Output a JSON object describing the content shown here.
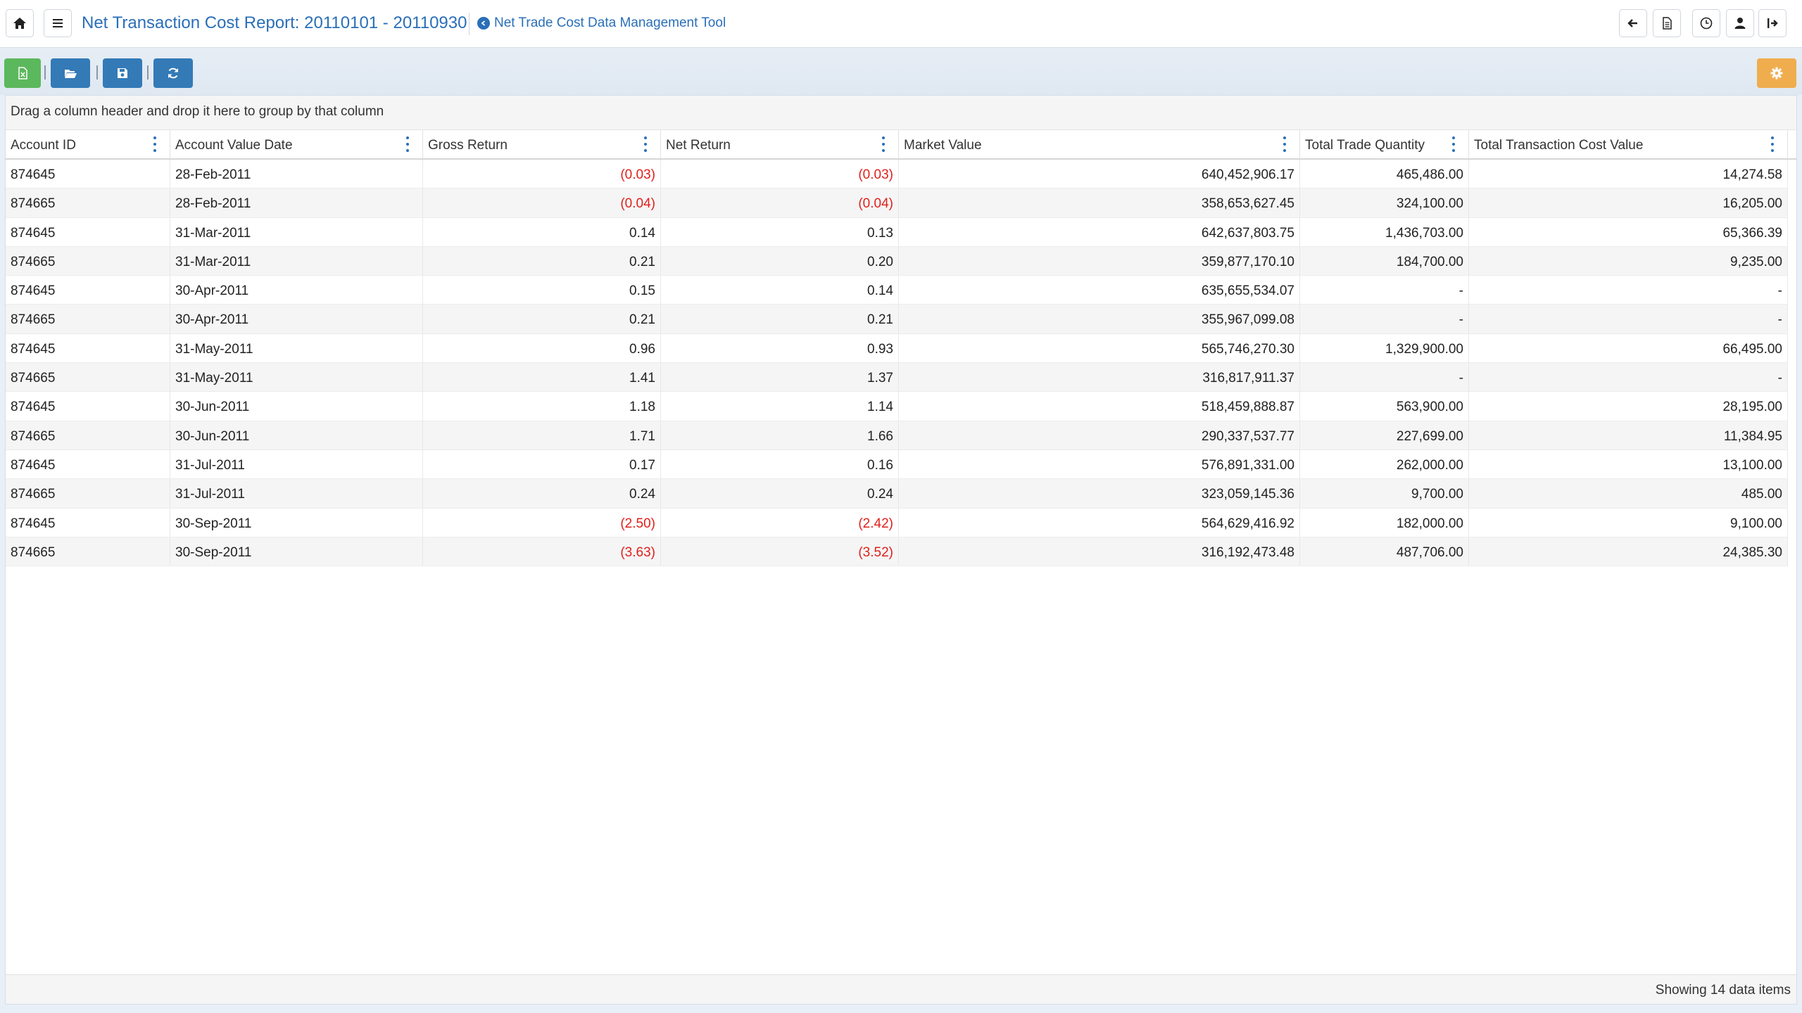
{
  "header": {
    "title": "Net Transaction Cost Report: 20110101 - 20110930",
    "sublink": "Net Trade Cost Data Management Tool",
    "left_buttons": [
      {
        "name": "home-button",
        "icon": "home-icon"
      },
      {
        "name": "menu-button",
        "icon": "hamburger-icon"
      }
    ],
    "right_buttons": [
      {
        "name": "back-button",
        "icon": "arrow-left-icon"
      },
      {
        "name": "document-button",
        "icon": "document-icon"
      },
      {
        "name": "history-button",
        "icon": "clock-icon"
      },
      {
        "name": "user-button",
        "icon": "user-icon"
      },
      {
        "name": "logout-button",
        "icon": "logout-icon"
      }
    ]
  },
  "toolbar": {
    "buttons": [
      {
        "name": "export-excel-button",
        "icon": "excel-icon",
        "color": "#5cb85c"
      },
      {
        "name": "open-button",
        "icon": "folder-open-icon",
        "color": "#337ab7"
      },
      {
        "name": "save-button",
        "icon": "save-icon",
        "color": "#337ab7"
      },
      {
        "name": "refresh-button",
        "icon": "refresh-icon",
        "color": "#337ab7"
      }
    ],
    "settings": {
      "name": "settings-button",
      "icon": "gear-icon",
      "color": "#f0ad4e"
    }
  },
  "grid": {
    "group_panel_text": "Drag a column header and drop it here to group by that column",
    "columns": [
      "Account ID",
      "Account Value Date",
      "Gross Return",
      "Net Return",
      "Market Value",
      "Total Trade Quantity",
      "Total Transaction Cost Value"
    ],
    "rows": [
      [
        "874645",
        "28-Feb-2011",
        "(0.03)",
        "(0.03)",
        "640,452,906.17",
        "465,486.00",
        "14,274.58"
      ],
      [
        "874665",
        "28-Feb-2011",
        "(0.04)",
        "(0.04)",
        "358,653,627.45",
        "324,100.00",
        "16,205.00"
      ],
      [
        "874645",
        "31-Mar-2011",
        "0.14",
        "0.13",
        "642,637,803.75",
        "1,436,703.00",
        "65,366.39"
      ],
      [
        "874665",
        "31-Mar-2011",
        "0.21",
        "0.20",
        "359,877,170.10",
        "184,700.00",
        "9,235.00"
      ],
      [
        "874645",
        "30-Apr-2011",
        "0.15",
        "0.14",
        "635,655,534.07",
        "-",
        "-"
      ],
      [
        "874665",
        "30-Apr-2011",
        "0.21",
        "0.21",
        "355,967,099.08",
        "-",
        "-"
      ],
      [
        "874645",
        "31-May-2011",
        "0.96",
        "0.93",
        "565,746,270.30",
        "1,329,900.00",
        "66,495.00"
      ],
      [
        "874665",
        "31-May-2011",
        "1.41",
        "1.37",
        "316,817,911.37",
        "-",
        "-"
      ],
      [
        "874645",
        "30-Jun-2011",
        "1.18",
        "1.14",
        "518,459,888.87",
        "563,900.00",
        "28,195.00"
      ],
      [
        "874665",
        "30-Jun-2011",
        "1.71",
        "1.66",
        "290,337,537.77",
        "227,699.00",
        "11,384.95"
      ],
      [
        "874645",
        "31-Jul-2011",
        "0.17",
        "0.16",
        "576,891,331.00",
        "262,000.00",
        "13,100.00"
      ],
      [
        "874665",
        "31-Jul-2011",
        "0.24",
        "0.24",
        "323,059,145.36",
        "9,700.00",
        "485.00"
      ],
      [
        "874645",
        "30-Sep-2011",
        "(2.50)",
        "(2.42)",
        "564,629,416.92",
        "182,000.00",
        "9,100.00"
      ],
      [
        "874665",
        "30-Sep-2011",
        "(3.63)",
        "(3.52)",
        "316,192,473.48",
        "487,706.00",
        "24,385.30"
      ]
    ],
    "footer_text": "Showing 14 data items"
  },
  "colors": {
    "accent": "#2a6fb8",
    "negative": "#e0201b"
  }
}
